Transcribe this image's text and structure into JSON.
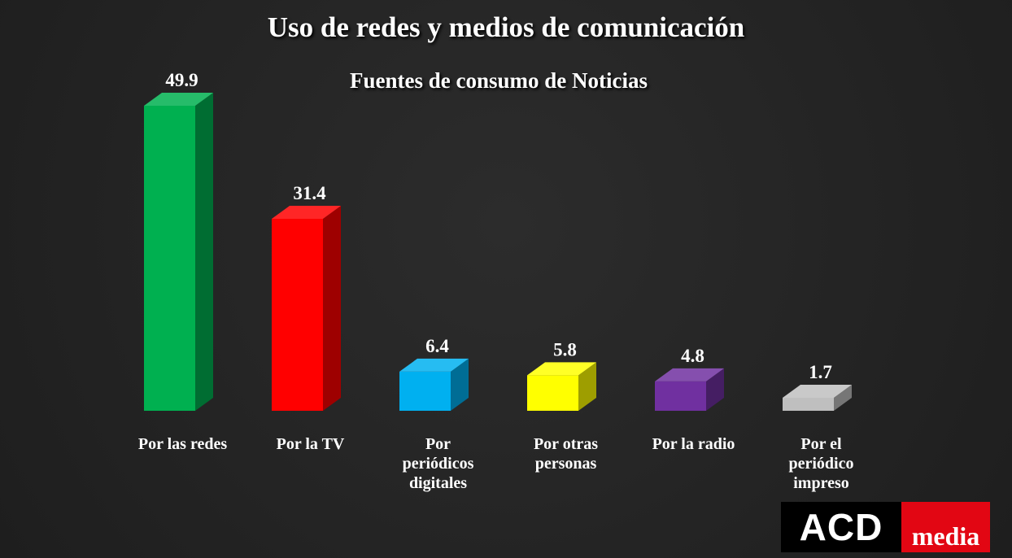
{
  "chart_data": {
    "type": "bar",
    "title": "Uso de redes y medios de comunicación",
    "subtitle": "Fuentes de consumo de Noticias",
    "categories": [
      "Por las redes",
      "Por la TV",
      "Por periódicos digitales",
      "Por otras personas",
      "Por la radio",
      "Por el periódico impreso"
    ],
    "values": [
      49.9,
      31.4,
      6.4,
      5.8,
      4.8,
      1.7
    ],
    "value_labels": [
      "49.9",
      "31.4",
      "6.4",
      "5.8",
      "4.8",
      "1.7"
    ],
    "colors": [
      "#00b050",
      "#ff0000",
      "#00b0f0",
      "#ffff00",
      "#7030a0",
      "#bfbfbf"
    ],
    "legend": "none",
    "grid": false,
    "style": "3d-columns"
  },
  "logo": {
    "text_left": "ACD",
    "text_right": "media"
  }
}
